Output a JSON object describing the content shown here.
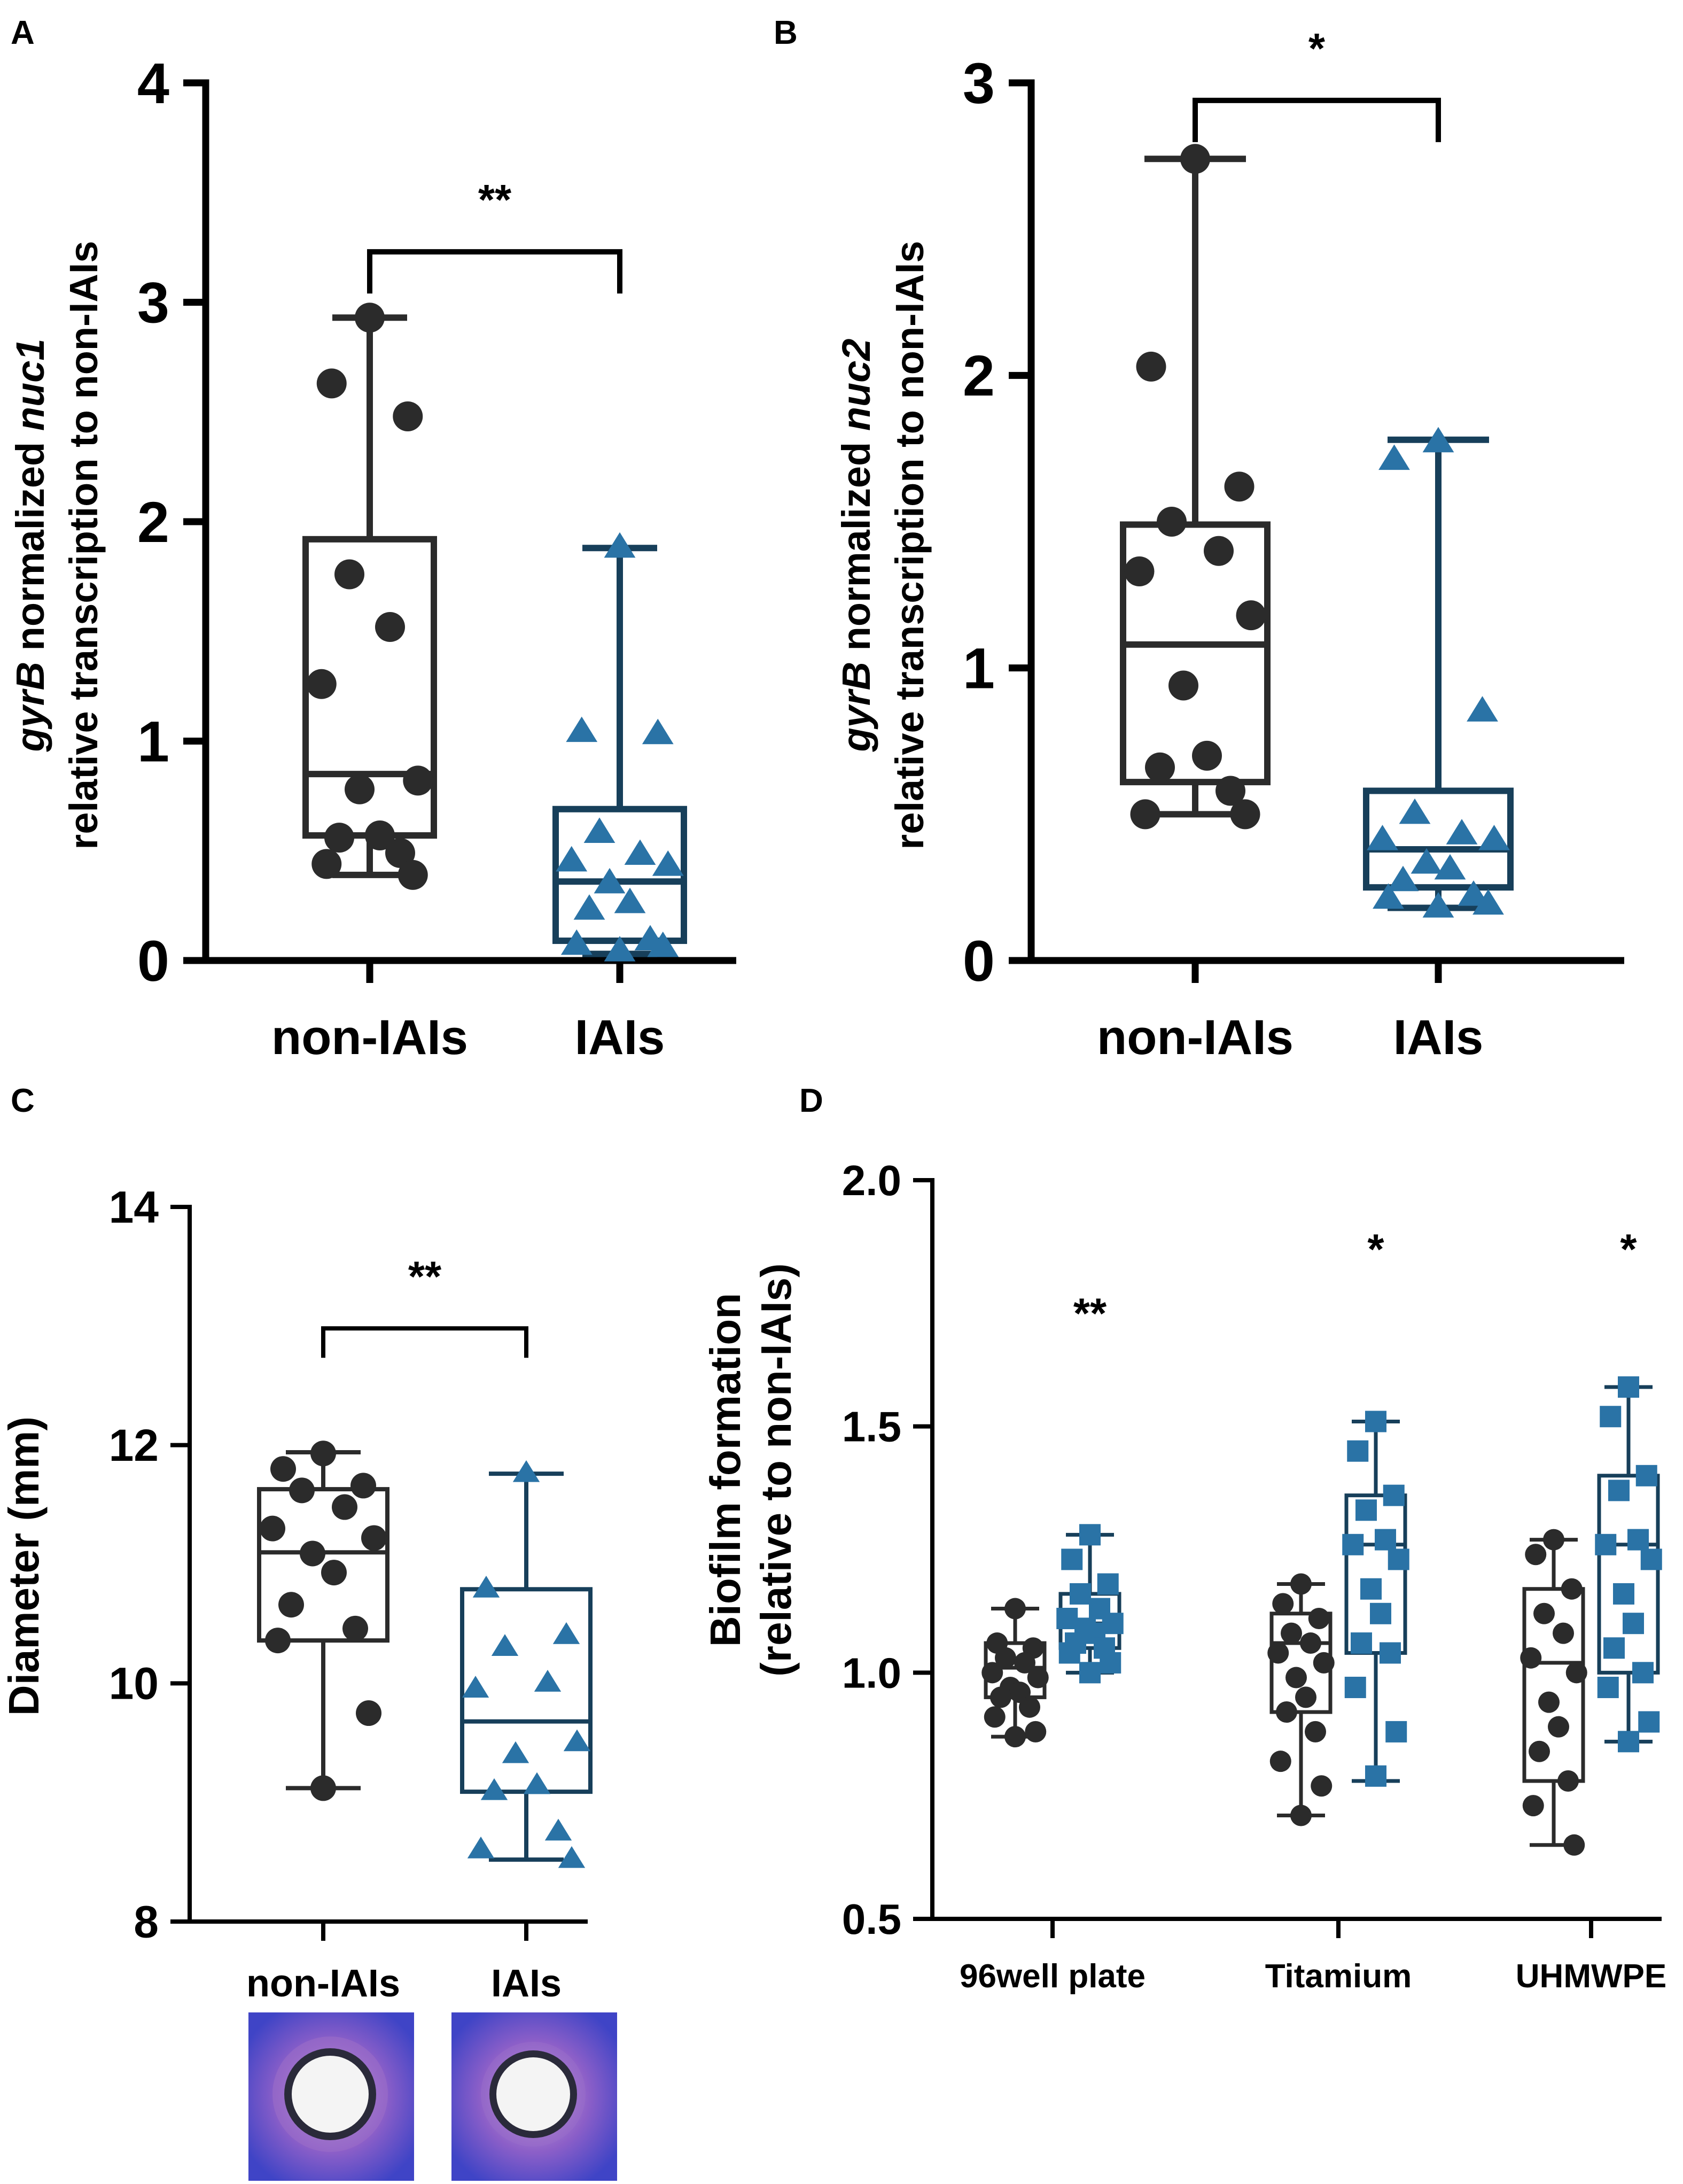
{
  "panel_labels": [
    "A",
    "B",
    "C",
    "D"
  ],
  "colors": {
    "black_series": "#2b2b2b",
    "blue_fill": "#2a73a6",
    "blue_stroke": "#173f5a",
    "axis": "#000000",
    "plate_outer": "#4a48c9",
    "plate_halo": "#9c6fc9"
  },
  "chart_data": [
    {
      "panel": "A",
      "type": "box",
      "ylabel": {
        "italic": "gyrB",
        "mid": " normalized ",
        "italic2": "nuc1",
        "line2": "relative transcription to non-IAIs"
      },
      "ylim": [
        0,
        4
      ],
      "yticks": [
        "0",
        "1",
        "2",
        "3",
        "4"
      ],
      "categories": [
        "non-IAIs",
        "IAIs"
      ],
      "series": [
        {
          "name": "non-IAIs",
          "marker": "circle",
          "color": "#2b2b2b",
          "box": {
            "min": 0.39,
            "q1": 0.57,
            "median": 0.85,
            "q3": 1.92,
            "max": 2.93
          },
          "points": [
            2.93,
            2.63,
            2.48,
            1.76,
            1.52,
            1.26,
            0.82,
            0.78,
            0.57,
            0.56,
            0.49,
            0.44,
            0.39
          ]
        },
        {
          "name": "IAIs",
          "marker": "triangle",
          "color": "#2a73a6",
          "box": {
            "min": 0.03,
            "q1": 0.09,
            "median": 0.36,
            "q3": 0.69,
            "max": 1.88
          },
          "points": [
            1.88,
            1.04,
            1.03,
            0.58,
            0.48,
            0.45,
            0.43,
            0.35,
            0.26,
            0.23,
            0.09,
            0.07,
            0.06,
            0.04
          ]
        }
      ],
      "significance": [
        {
          "label": "**",
          "between": [
            0,
            1
          ],
          "y": 3.23
        }
      ]
    },
    {
      "panel": "B",
      "type": "box",
      "ylabel": {
        "italic": "gyrB",
        "mid": " normalized ",
        "italic2": "nuc2",
        "line2": "relative transcription to non-IAIs"
      },
      "ylim": [
        0,
        3
      ],
      "yticks": [
        "0",
        "1",
        "2",
        "3"
      ],
      "categories": [
        "non-IAIs",
        "IAIs"
      ],
      "series": [
        {
          "name": "non-IAIs",
          "marker": "circle",
          "color": "#2b2b2b",
          "box": {
            "min": 0.5,
            "q1": 0.61,
            "median": 1.08,
            "q3": 1.49,
            "max": 2.74
          },
          "points": [
            2.74,
            2.03,
            1.62,
            1.5,
            1.4,
            1.33,
            1.18,
            0.94,
            0.7,
            0.66,
            0.58,
            0.5,
            0.5
          ]
        },
        {
          "name": "IAIs",
          "marker": "triangle",
          "color": "#2a73a6",
          "box": {
            "min": 0.18,
            "q1": 0.25,
            "median": 0.38,
            "q3": 0.58,
            "max": 1.78
          },
          "points": [
            1.77,
            1.71,
            0.85,
            0.5,
            0.43,
            0.41,
            0.41,
            0.33,
            0.31,
            0.27,
            0.22,
            0.21,
            0.19,
            0.18
          ]
        }
      ],
      "significance": [
        {
          "label": "*",
          "between": [
            0,
            1
          ],
          "y": 2.94
        }
      ]
    },
    {
      "panel": "C",
      "type": "box",
      "ylabel": "Diameter (mm)",
      "ylim": [
        8,
        14
      ],
      "yticks": [
        "8",
        "10",
        "12",
        "14"
      ],
      "categories": [
        "non-IAIs",
        "IAIs"
      ],
      "series": [
        {
          "name": "non-IAIs",
          "marker": "circle",
          "color": "#2b2b2b",
          "box": {
            "min": 9.12,
            "q1": 10.36,
            "median": 11.1,
            "q3": 11.63,
            "max": 11.94
          },
          "points": [
            11.93,
            11.8,
            11.66,
            11.62,
            11.48,
            11.3,
            11.22,
            11.09,
            10.93,
            10.66,
            10.46,
            10.36,
            9.75,
            9.12
          ]
        },
        {
          "name": "IAIs",
          "marker": "triangle",
          "color": "#2a73a6",
          "box": {
            "min": 8.52,
            "q1": 9.09,
            "median": 9.68,
            "q3": 10.79,
            "max": 11.76
          },
          "points": [
            11.76,
            10.79,
            10.4,
            10.3,
            10.0,
            9.95,
            9.5,
            9.4,
            9.14,
            9.09,
            8.75,
            8.6,
            8.52
          ]
        }
      ],
      "significance": [
        {
          "label": "**",
          "between": [
            0,
            1
          ],
          "y": 12.98
        }
      ]
    },
    {
      "panel": "D",
      "type": "box",
      "ylabel": {
        "line1": "Biofilm formation",
        "line2": "(relative to non-IAIs)"
      },
      "ylim": [
        0.5,
        2.0
      ],
      "yticks": [
        "0.5",
        "1.0",
        "1.5",
        "2.0"
      ],
      "categories": [
        "96well plate",
        "Titamium",
        "UHMWPE"
      ],
      "series": [
        {
          "name": "non-IAIs",
          "marker": "circle",
          "color": "#2b2b2b",
          "groups": [
            {
              "box": {
                "min": 0.87,
                "q1": 0.95,
                "median": 1.01,
                "q3": 1.06,
                "max": 1.13
              },
              "points": [
                1.13,
                1.06,
                1.05,
                1.03,
                1.02,
                1.0,
                0.99,
                0.97,
                0.96,
                0.95,
                0.93,
                0.91,
                0.88,
                0.87
              ]
            },
            {
              "box": {
                "min": 0.71,
                "q1": 0.92,
                "median": 1.06,
                "q3": 1.12,
                "max": 1.18
              },
              "points": [
                1.18,
                1.14,
                1.11,
                1.08,
                1.06,
                1.04,
                1.02,
                0.99,
                0.95,
                0.92,
                0.88,
                0.82,
                0.77,
                0.71
              ]
            },
            {
              "box": {
                "min": 0.65,
                "q1": 0.78,
                "median": 1.02,
                "q3": 1.17,
                "max": 1.27
              },
              "points": [
                1.27,
                1.24,
                1.17,
                1.12,
                1.08,
                1.03,
                1.0,
                0.94,
                0.89,
                0.84,
                0.78,
                0.73,
                0.65
              ]
            }
          ]
        },
        {
          "name": "IAIs",
          "marker": "square",
          "color": "#2a73a6",
          "groups": [
            {
              "box": {
                "min": 1.0,
                "q1": 1.05,
                "median": 1.1,
                "q3": 1.16,
                "max": 1.28
              },
              "points": [
                1.28,
                1.23,
                1.18,
                1.16,
                1.13,
                1.11,
                1.1,
                1.09,
                1.08,
                1.06,
                1.05,
                1.04,
                1.02,
                1.0
              ]
            },
            {
              "box": {
                "min": 0.78,
                "q1": 1.04,
                "median": 1.26,
                "q3": 1.36,
                "max": 1.51
              },
              "points": [
                1.51,
                1.45,
                1.36,
                1.33,
                1.27,
                1.26,
                1.23,
                1.17,
                1.12,
                1.06,
                1.04,
                0.97,
                0.88,
                0.79
              ]
            },
            {
              "box": {
                "min": 0.86,
                "q1": 1.0,
                "median": 1.26,
                "q3": 1.4,
                "max": 1.58
              },
              "points": [
                1.58,
                1.52,
                1.4,
                1.37,
                1.27,
                1.26,
                1.23,
                1.16,
                1.1,
                1.05,
                1.0,
                0.97,
                0.9,
                0.86
              ]
            }
          ]
        }
      ],
      "significance": [
        {
          "label": "**",
          "category": 0,
          "y": 1.7
        },
        {
          "label": "*",
          "category": 1,
          "y": 1.83
        },
        {
          "label": "*",
          "category": 2,
          "y": 1.83
        }
      ]
    }
  ]
}
